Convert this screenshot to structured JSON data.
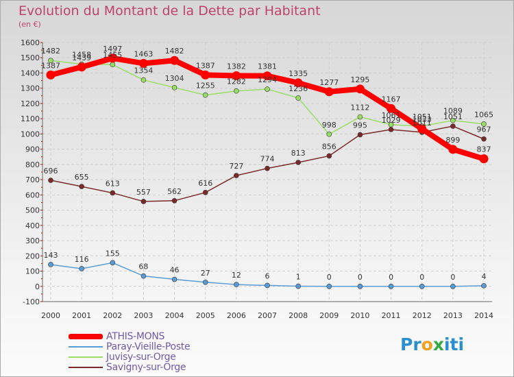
{
  "title": "Evolution du Montant de la Dette par Habitant",
  "subtitle": "(en €)",
  "logo": {
    "part1": "Pr",
    "part2": "o",
    "part3": "x",
    "part4": "iti"
  },
  "chart_data": {
    "type": "line",
    "title": "Evolution du Montant de la Dette par Habitant",
    "subtitle": "(en €)",
    "xlabel": "",
    "ylabel": "",
    "x": [
      "2000",
      "2001",
      "2002",
      "2003",
      "2004",
      "2005",
      "2006",
      "2007",
      "2008",
      "2009",
      "2010",
      "2011",
      "2012",
      "2013",
      "2014"
    ],
    "ylim": [
      -100,
      1600
    ],
    "yticks": [
      -100,
      0,
      100,
      200,
      300,
      400,
      500,
      600,
      700,
      800,
      900,
      1000,
      1100,
      1200,
      1300,
      1400,
      1500,
      1600
    ],
    "grid": true,
    "legend_position": "bottom-left",
    "series": [
      {
        "name": "ATHIS-MONS",
        "color": "#ff0000",
        "values": [
          1387,
          1439,
          1497,
          1463,
          1482,
          1387,
          1382,
          1381,
          1335,
          1277,
          1295,
          1167,
          1033,
          899,
          837
        ]
      },
      {
        "name": "Paray-Vieille-Poste",
        "color": "#5b9bd5",
        "values": [
          143,
          116,
          155,
          68,
          46,
          27,
          12,
          6,
          1,
          0,
          0,
          0,
          0,
          0,
          4
        ]
      },
      {
        "name": "Juvisy-sur-Orge",
        "color": "#99dd66",
        "values": [
          1482,
          1458,
          1455,
          1354,
          1304,
          1255,
          1282,
          1294,
          1236,
          998,
          1112,
          1061,
          1051,
          1089,
          1065
        ]
      },
      {
        "name": "Savigny-sur-Orge",
        "color": "#7a2a2a",
        "values": [
          696,
          655,
          613,
          557,
          562,
          616,
          727,
          774,
          813,
          856,
          995,
          1029,
          1011,
          1051,
          967
        ]
      }
    ]
  }
}
